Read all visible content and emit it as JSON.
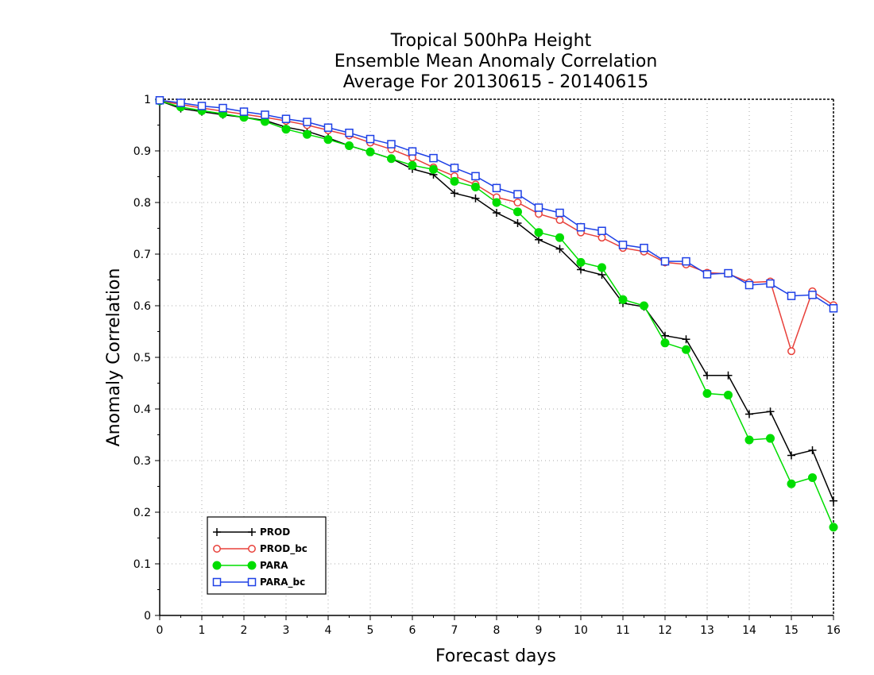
{
  "chart_data": {
    "type": "line",
    "title_lines": [
      "Tropical 500hPa Height",
      "Ensemble Mean Anomaly Correlation",
      "Average For 20130615 - 20140615"
    ],
    "xlabel": "Forecast days",
    "ylabel": "Anomaly Correlation",
    "xlim": [
      0,
      16
    ],
    "ylim": [
      0,
      1
    ],
    "x_ticks": [
      "0",
      "1",
      "2",
      "3",
      "4",
      "5",
      "6",
      "7",
      "8",
      "9",
      "10",
      "11",
      "12",
      "13",
      "14",
      "15",
      "16"
    ],
    "y_ticks": [
      "0",
      "0.1",
      "0.2",
      "0.3",
      "0.4",
      "0.5",
      "0.6",
      "0.7",
      "0.8",
      "0.9",
      "1"
    ],
    "grid": true,
    "legend_position": "bottom-left",
    "x": [
      0,
      0.5,
      1,
      1.5,
      2,
      2.5,
      3,
      3.5,
      4,
      4.5,
      5,
      5.5,
      6,
      6.5,
      7,
      7.5,
      8,
      8.5,
      9,
      9.5,
      10,
      10.5,
      11,
      11.5,
      12,
      12.5,
      13,
      13.5,
      14,
      14.5,
      15,
      15.5,
      16
    ],
    "series": [
      {
        "name": "PROD",
        "color": "#000000",
        "marker": "plus",
        "values": [
          0.997,
          0.982,
          0.976,
          0.97,
          0.965,
          0.959,
          0.946,
          0.938,
          0.925,
          0.91,
          0.898,
          0.885,
          0.865,
          0.854,
          0.818,
          0.808,
          0.78,
          0.76,
          0.728,
          0.71,
          0.67,
          0.66,
          0.605,
          0.598,
          0.542,
          0.535,
          0.465,
          0.465,
          0.39,
          0.395,
          0.31,
          0.32,
          0.222
        ]
      },
      {
        "name": "PROD_bc",
        "color": "#e8403a",
        "marker": "open-circle",
        "values": [
          0.997,
          0.99,
          0.983,
          0.977,
          0.971,
          0.965,
          0.958,
          0.95,
          0.94,
          0.93,
          0.916,
          0.903,
          0.887,
          0.868,
          0.851,
          0.835,
          0.81,
          0.8,
          0.778,
          0.766,
          0.742,
          0.732,
          0.712,
          0.705,
          0.684,
          0.68,
          0.664,
          0.662,
          0.645,
          0.647,
          0.512,
          0.628,
          0.601
        ]
      },
      {
        "name": "PARA",
        "color": "#00dd00",
        "marker": "filled-circle",
        "values": [
          0.997,
          0.985,
          0.978,
          0.972,
          0.965,
          0.957,
          0.942,
          0.932,
          0.922,
          0.91,
          0.898,
          0.885,
          0.872,
          0.864,
          0.841,
          0.83,
          0.8,
          0.782,
          0.742,
          0.732,
          0.684,
          0.674,
          0.612,
          0.6,
          0.528,
          0.515,
          0.43,
          0.427,
          0.34,
          0.343,
          0.255,
          0.267,
          0.171
        ]
      },
      {
        "name": "PARA_bc",
        "color": "#1e40e6",
        "marker": "open-square",
        "values": [
          0.998,
          0.993,
          0.987,
          0.983,
          0.976,
          0.97,
          0.962,
          0.956,
          0.945,
          0.935,
          0.923,
          0.913,
          0.899,
          0.886,
          0.867,
          0.851,
          0.828,
          0.816,
          0.79,
          0.78,
          0.752,
          0.745,
          0.718,
          0.712,
          0.686,
          0.686,
          0.661,
          0.663,
          0.64,
          0.643,
          0.619,
          0.621,
          0.595
        ]
      }
    ]
  }
}
